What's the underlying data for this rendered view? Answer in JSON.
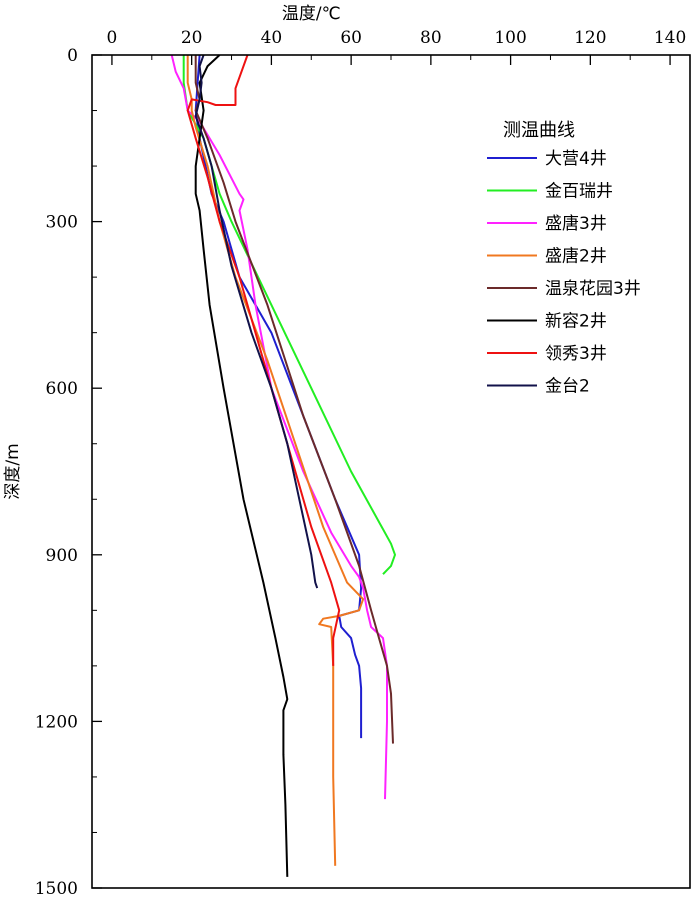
{
  "chart_data": {
    "type": "line",
    "xlabel": "温度/℃",
    "ylabel": "深度/m",
    "xlim": [
      -5,
      145
    ],
    "ylim": [
      0,
      1500
    ],
    "x_ticks": [
      0,
      20,
      40,
      60,
      80,
      100,
      120,
      140
    ],
    "y_ticks": [
      0,
      300,
      600,
      900,
      1200,
      1500
    ],
    "y_inverted": true,
    "x_axis_position": "top",
    "grid": false,
    "legend_title": "测温曲线",
    "legend_position": "top-right",
    "series": [
      {
        "name": "大营4井",
        "color": "#1f1fd0",
        "points": [
          [
            22,
            0
          ],
          [
            21.5,
            50
          ],
          [
            21,
            100
          ],
          [
            22,
            150
          ],
          [
            25,
            250
          ],
          [
            28,
            300
          ],
          [
            32,
            400
          ],
          [
            40,
            500
          ],
          [
            48,
            650
          ],
          [
            56,
            800
          ],
          [
            62,
            900
          ],
          [
            62.5,
            960
          ],
          [
            62,
            1000
          ],
          [
            57,
            1010
          ],
          [
            57.5,
            1030
          ],
          [
            60,
            1050
          ],
          [
            61,
            1080
          ],
          [
            62,
            1100
          ],
          [
            62.5,
            1140
          ],
          [
            62.5,
            1230
          ]
        ]
      },
      {
        "name": "金百瑞井",
        "color": "#22ee22",
        "points": [
          [
            18,
            0
          ],
          [
            18,
            50
          ],
          [
            19,
            100
          ],
          [
            23,
            150
          ],
          [
            27,
            250
          ],
          [
            30,
            300
          ],
          [
            40,
            450
          ],
          [
            50,
            600
          ],
          [
            60,
            750
          ],
          [
            70,
            880
          ],
          [
            71,
            900
          ],
          [
            70,
            920
          ],
          [
            68,
            935
          ]
        ]
      },
      {
        "name": "盛唐3井",
        "color": "#ff22ff",
        "points": [
          [
            15,
            0
          ],
          [
            16,
            30
          ],
          [
            18,
            60
          ],
          [
            19,
            100
          ],
          [
            22,
            120
          ],
          [
            27,
            180
          ],
          [
            32,
            250
          ],
          [
            33,
            260
          ],
          [
            32,
            280
          ],
          [
            34,
            350
          ],
          [
            36,
            450
          ],
          [
            40,
            600
          ],
          [
            48,
            750
          ],
          [
            55,
            860
          ],
          [
            60,
            920
          ],
          [
            62,
            940
          ],
          [
            63,
            960
          ],
          [
            64,
            1000
          ],
          [
            65,
            1030
          ],
          [
            68,
            1050
          ],
          [
            69,
            1100
          ],
          [
            69,
            1200
          ],
          [
            68.5,
            1340
          ]
        ]
      },
      {
        "name": "盛唐2井",
        "color": "#f07820",
        "points": [
          [
            19,
            0
          ],
          [
            19,
            50
          ],
          [
            20,
            80
          ],
          [
            20,
            100
          ],
          [
            21,
            130
          ],
          [
            24,
            200
          ],
          [
            27,
            300
          ],
          [
            31,
            400
          ],
          [
            39,
            550
          ],
          [
            46,
            700
          ],
          [
            53,
            850
          ],
          [
            59,
            950
          ],
          [
            63,
            980
          ],
          [
            62,
            1000
          ],
          [
            57,
            1010
          ],
          [
            53,
            1015
          ],
          [
            52,
            1025
          ],
          [
            55,
            1030
          ],
          [
            55.5,
            1100
          ],
          [
            55.5,
            1300
          ],
          [
            56,
            1460
          ]
        ]
      },
      {
        "name": "温泉花园3井",
        "color": "#6b2a2a",
        "points": [
          [
            21,
            0
          ],
          [
            21,
            50
          ],
          [
            22,
            80
          ],
          [
            21,
            100
          ],
          [
            24,
            150
          ],
          [
            28,
            230
          ],
          [
            31,
            300
          ],
          [
            39,
            450
          ],
          [
            48,
            650
          ],
          [
            56,
            800
          ],
          [
            62,
            920
          ],
          [
            65,
            1000
          ],
          [
            67,
            1050
          ],
          [
            69,
            1100
          ],
          [
            70,
            1150
          ],
          [
            70.5,
            1240
          ]
        ]
      },
      {
        "name": "新容2井",
        "color": "#000000",
        "points": [
          [
            27,
            0
          ],
          [
            24,
            20
          ],
          [
            22,
            50
          ],
          [
            23,
            100
          ],
          [
            22,
            150
          ],
          [
            21,
            200
          ],
          [
            21,
            250
          ],
          [
            22,
            280
          ],
          [
            23,
            350
          ],
          [
            24.5,
            450
          ],
          [
            28,
            600
          ],
          [
            33,
            800
          ],
          [
            38,
            950
          ],
          [
            41,
            1050
          ],
          [
            43,
            1120
          ],
          [
            44,
            1160
          ],
          [
            43,
            1180
          ],
          [
            43,
            1260
          ],
          [
            43.5,
            1350
          ],
          [
            44,
            1480
          ]
        ]
      },
      {
        "name": "领秀3井",
        "color": "#ee1111",
        "points": [
          [
            34,
            0
          ],
          [
            32,
            40
          ],
          [
            31,
            60
          ],
          [
            31,
            90
          ],
          [
            26,
            90
          ],
          [
            24,
            85
          ],
          [
            20,
            80
          ],
          [
            19,
            100
          ],
          [
            21,
            150
          ],
          [
            24,
            220
          ],
          [
            27,
            300
          ],
          [
            32,
            400
          ],
          [
            38,
            550
          ],
          [
            44,
            700
          ],
          [
            50,
            850
          ],
          [
            55,
            950
          ],
          [
            57,
            1000
          ],
          [
            55.5,
            1050
          ],
          [
            55.5,
            1100
          ]
        ]
      },
      {
        "name": "金台2",
        "color": "#12124a",
        "points": [
          [
            23,
            0
          ],
          [
            22,
            20
          ],
          [
            22.5,
            50
          ],
          [
            22,
            80
          ],
          [
            21,
            110
          ],
          [
            23,
            150
          ],
          [
            25,
            200
          ],
          [
            27,
            280
          ],
          [
            30,
            380
          ],
          [
            35,
            500
          ],
          [
            40,
            600
          ],
          [
            44,
            700
          ],
          [
            47,
            800
          ],
          [
            50,
            900
          ],
          [
            51,
            950
          ],
          [
            51.5,
            960
          ]
        ]
      }
    ]
  }
}
